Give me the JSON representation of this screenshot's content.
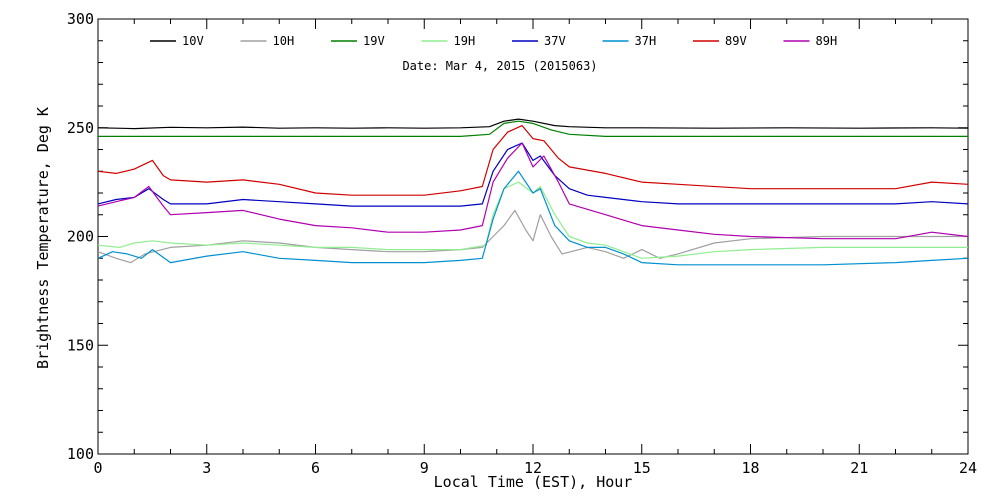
{
  "chart_data": {
    "type": "line",
    "subtitle": "Date: Mar  4, 2015 (2015063)",
    "xlabel": "Local Time (EST), Hour",
    "ylabel": "Brightness Temperature, Deg K",
    "xlim": [
      0,
      24
    ],
    "ylim": [
      100,
      300
    ],
    "xticks": [
      0,
      3,
      6,
      9,
      12,
      15,
      18,
      21,
      24
    ],
    "yticks": [
      100,
      150,
      200,
      250,
      300
    ],
    "grid": false,
    "legend_position": "top",
    "series": [
      {
        "name": "10V",
        "color": "#000000",
        "points": [
          [
            0,
            250
          ],
          [
            1,
            249.6
          ],
          [
            2,
            250.2
          ],
          [
            3,
            250
          ],
          [
            4,
            250.3
          ],
          [
            5,
            249.8
          ],
          [
            6,
            250
          ],
          [
            7,
            249.8
          ],
          [
            8,
            250
          ],
          [
            9,
            249.8
          ],
          [
            10,
            250
          ],
          [
            10.8,
            250.5
          ],
          [
            11.2,
            253
          ],
          [
            11.6,
            254
          ],
          [
            12,
            253
          ],
          [
            12.6,
            251
          ],
          [
            13,
            250.5
          ],
          [
            14,
            250
          ],
          [
            15,
            250
          ],
          [
            17,
            249.8
          ],
          [
            19,
            250
          ],
          [
            21,
            249.8
          ],
          [
            23,
            250
          ],
          [
            24,
            249.8
          ]
        ]
      },
      {
        "name": "10H",
        "color": "#a0a0a0",
        "points": [
          [
            0,
            193
          ],
          [
            0.5,
            190
          ],
          [
            0.9,
            188
          ],
          [
            1.3,
            192
          ],
          [
            2,
            195
          ],
          [
            3,
            196
          ],
          [
            4,
            198
          ],
          [
            5,
            197
          ],
          [
            6,
            195
          ],
          [
            7,
            194
          ],
          [
            8,
            193
          ],
          [
            9,
            193
          ],
          [
            10,
            194
          ],
          [
            10.6,
            195
          ],
          [
            10.9,
            200
          ],
          [
            11.2,
            205
          ],
          [
            11.5,
            212
          ],
          [
            11.8,
            203
          ],
          [
            12,
            198
          ],
          [
            12.2,
            210
          ],
          [
            12.5,
            200
          ],
          [
            12.8,
            192
          ],
          [
            13.5,
            195
          ],
          [
            14,
            193
          ],
          [
            14.5,
            190
          ],
          [
            15,
            194
          ],
          [
            15.5,
            190
          ],
          [
            16,
            192
          ],
          [
            17,
            197
          ],
          [
            18,
            199
          ],
          [
            20,
            200
          ],
          [
            22,
            200
          ],
          [
            24,
            200
          ]
        ]
      },
      {
        "name": "19V",
        "color": "#008000",
        "points": [
          [
            0,
            246
          ],
          [
            2,
            246
          ],
          [
            4,
            246
          ],
          [
            6,
            246
          ],
          [
            8,
            246
          ],
          [
            10,
            246
          ],
          [
            10.8,
            247
          ],
          [
            11.2,
            252
          ],
          [
            11.6,
            253
          ],
          [
            12,
            252
          ],
          [
            12.5,
            249
          ],
          [
            13,
            247
          ],
          [
            14,
            246
          ],
          [
            16,
            246
          ],
          [
            18,
            246
          ],
          [
            20,
            246
          ],
          [
            22,
            246
          ],
          [
            24,
            246
          ]
        ]
      },
      {
        "name": "19H",
        "color": "#90ee90",
        "points": [
          [
            0,
            196
          ],
          [
            0.6,
            195
          ],
          [
            1,
            197
          ],
          [
            1.5,
            198
          ],
          [
            2,
            197
          ],
          [
            3,
            196
          ],
          [
            4,
            197
          ],
          [
            5,
            196
          ],
          [
            6,
            195
          ],
          [
            7,
            195
          ],
          [
            8,
            194
          ],
          [
            9,
            194
          ],
          [
            10,
            194
          ],
          [
            10.7,
            196
          ],
          [
            10.9,
            210
          ],
          [
            11.2,
            222
          ],
          [
            11.6,
            225
          ],
          [
            12,
            220
          ],
          [
            12.2,
            223
          ],
          [
            12.6,
            210
          ],
          [
            13,
            200
          ],
          [
            13.5,
            197
          ],
          [
            14,
            196
          ],
          [
            14.5,
            193
          ],
          [
            15,
            190
          ],
          [
            16,
            191
          ],
          [
            17,
            193
          ],
          [
            18,
            194
          ],
          [
            20,
            195
          ],
          [
            22,
            195
          ],
          [
            24,
            195
          ]
        ]
      },
      {
        "name": "37V",
        "color": "#0000c0",
        "points": [
          [
            0,
            215
          ],
          [
            0.5,
            217
          ],
          [
            1,
            218
          ],
          [
            1.4,
            222
          ],
          [
            1.8,
            217
          ],
          [
            2,
            215
          ],
          [
            3,
            215
          ],
          [
            4,
            217
          ],
          [
            5,
            216
          ],
          [
            6,
            215
          ],
          [
            7,
            214
          ],
          [
            8,
            214
          ],
          [
            9,
            214
          ],
          [
            10,
            214
          ],
          [
            10.6,
            215
          ],
          [
            10.9,
            230
          ],
          [
            11.3,
            240
          ],
          [
            11.7,
            243
          ],
          [
            12,
            235
          ],
          [
            12.2,
            237
          ],
          [
            12.6,
            228
          ],
          [
            13,
            222
          ],
          [
            13.5,
            219
          ],
          [
            14,
            218
          ],
          [
            15,
            216
          ],
          [
            16,
            215
          ],
          [
            18,
            215
          ],
          [
            20,
            215
          ],
          [
            22,
            215
          ],
          [
            23,
            216
          ],
          [
            24,
            215
          ]
        ]
      },
      {
        "name": "37H",
        "color": "#0090d0",
        "points": [
          [
            0,
            190
          ],
          [
            0.4,
            193
          ],
          [
            0.8,
            192
          ],
          [
            1.2,
            190
          ],
          [
            1.5,
            194
          ],
          [
            2,
            188
          ],
          [
            3,
            191
          ],
          [
            4,
            193
          ],
          [
            5,
            190
          ],
          [
            6,
            189
          ],
          [
            7,
            188
          ],
          [
            8,
            188
          ],
          [
            9,
            188
          ],
          [
            10,
            189
          ],
          [
            10.6,
            190
          ],
          [
            10.9,
            208
          ],
          [
            11.2,
            222
          ],
          [
            11.6,
            230
          ],
          [
            12,
            220
          ],
          [
            12.2,
            222
          ],
          [
            12.6,
            205
          ],
          [
            13,
            198
          ],
          [
            13.5,
            195
          ],
          [
            14,
            195
          ],
          [
            14.5,
            192
          ],
          [
            15,
            188
          ],
          [
            16,
            187
          ],
          [
            18,
            187
          ],
          [
            20,
            187
          ],
          [
            22,
            188
          ],
          [
            23,
            189
          ],
          [
            24,
            190
          ]
        ]
      },
      {
        "name": "89V",
        "color": "#d00000",
        "points": [
          [
            0,
            230
          ],
          [
            0.5,
            229
          ],
          [
            1,
            231
          ],
          [
            1.5,
            235
          ],
          [
            1.8,
            228
          ],
          [
            2,
            226
          ],
          [
            3,
            225
          ],
          [
            4,
            226
          ],
          [
            5,
            224
          ],
          [
            6,
            220
          ],
          [
            7,
            219
          ],
          [
            8,
            219
          ],
          [
            9,
            219
          ],
          [
            10,
            221
          ],
          [
            10.6,
            223
          ],
          [
            10.9,
            240
          ],
          [
            11.3,
            248
          ],
          [
            11.7,
            251
          ],
          [
            12,
            245
          ],
          [
            12.3,
            244
          ],
          [
            12.7,
            236
          ],
          [
            13,
            232
          ],
          [
            14,
            229
          ],
          [
            15,
            225
          ],
          [
            16,
            224
          ],
          [
            18,
            222
          ],
          [
            20,
            222
          ],
          [
            22,
            222
          ],
          [
            23,
            225
          ],
          [
            24,
            224
          ]
        ]
      },
      {
        "name": "89H",
        "color": "#b000b0",
        "points": [
          [
            0,
            214
          ],
          [
            0.5,
            216
          ],
          [
            1,
            218
          ],
          [
            1.4,
            223
          ],
          [
            1.8,
            214
          ],
          [
            2,
            210
          ],
          [
            3,
            211
          ],
          [
            4,
            212
          ],
          [
            5,
            208
          ],
          [
            6,
            205
          ],
          [
            7,
            204
          ],
          [
            8,
            202
          ],
          [
            9,
            202
          ],
          [
            10,
            203
          ],
          [
            10.6,
            205
          ],
          [
            10.9,
            225
          ],
          [
            11.3,
            236
          ],
          [
            11.7,
            243
          ],
          [
            12,
            232
          ],
          [
            12.3,
            237
          ],
          [
            12.7,
            225
          ],
          [
            13,
            215
          ],
          [
            14,
            210
          ],
          [
            15,
            205
          ],
          [
            16,
            203
          ],
          [
            17,
            201
          ],
          [
            18,
            200
          ],
          [
            20,
            199
          ],
          [
            22,
            199
          ],
          [
            23,
            202
          ],
          [
            24,
            200
          ]
        ]
      }
    ]
  }
}
